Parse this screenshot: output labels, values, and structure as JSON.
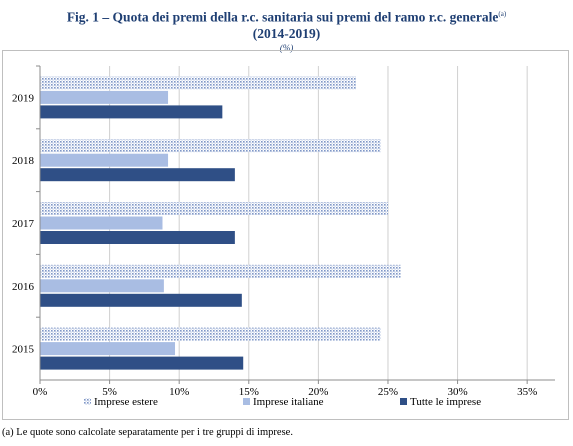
{
  "title": "Fig. 1 – Quota dei premi della r.c. sanitaria sui premi del ramo r.c. generale",
  "title_note_ref": "(a)",
  "subtitle": "(2014-2019)",
  "unit": "(%)",
  "footnote": "(a) Le quote sono calcolate separatamente per i tre gruppi di imprese.",
  "colors": {
    "estere": "#9fb2d6",
    "italiane": "#a9bde3",
    "tutte": "#2f4f86",
    "axis": "#8c8c8c",
    "grid": "#d0d0d0"
  },
  "chart_data": {
    "type": "bar",
    "orientation": "horizontal",
    "categories": [
      "2019",
      "2018",
      "2017",
      "2016",
      "2015"
    ],
    "series": [
      {
        "name": "Imprese estere",
        "pattern": "dotted",
        "values": [
          22.7,
          24.5,
          25.0,
          25.9,
          24.5
        ]
      },
      {
        "name": "Imprese italiane",
        "pattern": "light",
        "values": [
          9.2,
          9.2,
          8.8,
          8.9,
          9.7
        ]
      },
      {
        "name": "Tutte le imprese",
        "pattern": "solid",
        "values": [
          13.1,
          14.0,
          14.0,
          14.5,
          14.6
        ]
      }
    ],
    "xlim": [
      0,
      37
    ],
    "xticks": [
      0,
      5,
      10,
      15,
      20,
      25,
      30,
      35
    ],
    "xtick_labels": [
      "0%",
      "5%",
      "10%",
      "15%",
      "20%",
      "25%",
      "30%",
      "35%"
    ],
    "grid": true,
    "legend_position": "bottom"
  }
}
